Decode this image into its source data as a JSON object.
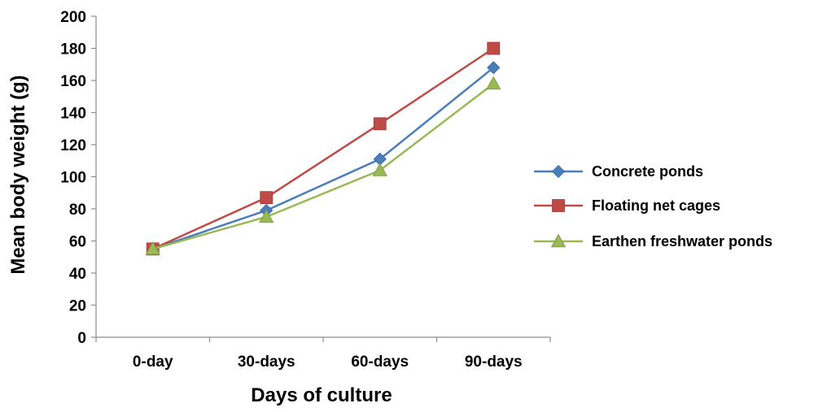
{
  "chart_data": {
    "type": "line",
    "title": "",
    "xlabel": "Days of culture",
    "ylabel": "Mean body weight (g)",
    "categories": [
      "0-day",
      "30-days",
      "60-days",
      "90-days"
    ],
    "y_ticks": [
      "0",
      "20",
      "40",
      "60",
      "80",
      "100",
      "120",
      "140",
      "160",
      "180",
      "200"
    ],
    "ylim": [
      0,
      200
    ],
    "grid": false,
    "legend_position": "right",
    "series": [
      {
        "name": "Concrete ponds",
        "values": [
          55,
          79,
          111,
          168
        ],
        "color": "#4a7ebb",
        "marker": "diamond"
      },
      {
        "name": "Floating net cages",
        "values": [
          55,
          87,
          133,
          180
        ],
        "color": "#be4b48",
        "marker": "square"
      },
      {
        "name": "Earthen freshwater ponds",
        "values": [
          55,
          75,
          104,
          158
        ],
        "color": "#98b954",
        "marker": "triangle"
      }
    ]
  }
}
